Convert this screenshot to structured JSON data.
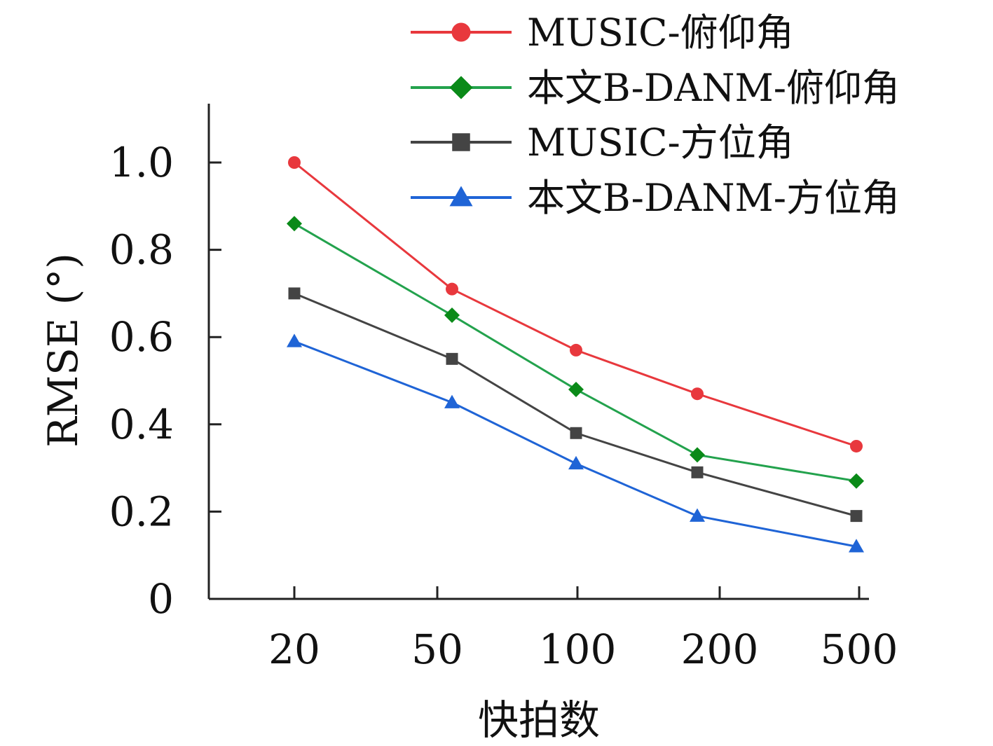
{
  "chart_data": {
    "type": "line",
    "categories": [
      "20",
      "50",
      "100",
      "200",
      "500"
    ],
    "xlabel": "快拍数",
    "ylabel": "RMSE (°)",
    "ylim": [
      0,
      1.1
    ],
    "yticks": [
      "0",
      "0.2",
      "0.4",
      "0.6",
      "0.8",
      "1.0"
    ],
    "grid": false,
    "legend_position": "top-right",
    "series": [
      {
        "name": "MUSIC-俯仰角",
        "color": "#e8383d",
        "marker": "circle",
        "values": [
          1.0,
          0.71,
          0.57,
          0.47,
          0.35
        ]
      },
      {
        "name": "本文B-DANM-俯仰角",
        "color": "#23a24d",
        "marker_color": "#0a8a18",
        "marker": "diamond",
        "values": [
          0.86,
          0.65,
          0.48,
          0.33,
          0.27
        ]
      },
      {
        "name": "MUSIC-方位角",
        "color": "#444444",
        "marker": "square",
        "values": [
          0.7,
          0.55,
          0.38,
          0.29,
          0.19
        ]
      },
      {
        "name": "本文B-DANM-方位角",
        "color": "#1f64d6",
        "marker": "triangle",
        "values": [
          0.59,
          0.45,
          0.31,
          0.19,
          0.12
        ]
      }
    ]
  }
}
